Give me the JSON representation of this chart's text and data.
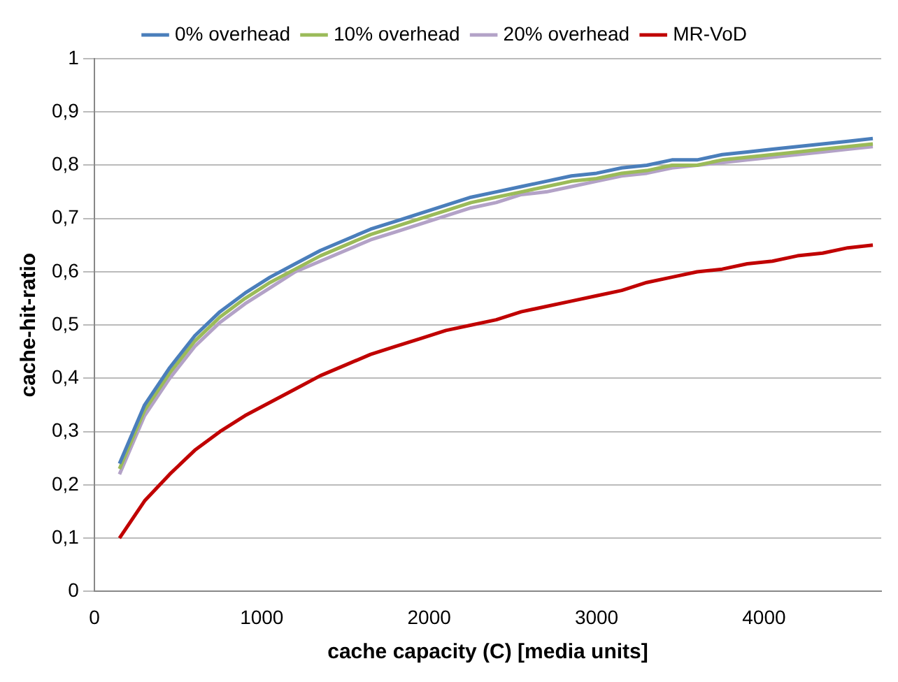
{
  "chart_data": {
    "type": "line",
    "xlabel": "cache capacity (C) [media units]",
    "ylabel": "cache-hit-ratio",
    "x": [
      150,
      300,
      450,
      600,
      750,
      900,
      1050,
      1200,
      1350,
      1500,
      1650,
      1800,
      1950,
      2100,
      2250,
      2400,
      2550,
      2700,
      2850,
      3000,
      3150,
      3300,
      3450,
      3600,
      3750,
      3900,
      4050,
      4200,
      4350,
      4500,
      4650
    ],
    "series": [
      {
        "name": "0% overhead",
        "color": "#4a7ebb",
        "values": [
          0.24,
          0.35,
          0.42,
          0.48,
          0.525,
          0.56,
          0.59,
          0.615,
          0.64,
          0.66,
          0.68,
          0.695,
          0.71,
          0.725,
          0.74,
          0.75,
          0.76,
          0.77,
          0.78,
          0.785,
          0.795,
          0.8,
          0.81,
          0.81,
          0.82,
          0.825,
          0.83,
          0.835,
          0.84,
          0.845,
          0.85
        ]
      },
      {
        "name": "10% overhead",
        "color": "#9bbb59",
        "values": [
          0.23,
          0.34,
          0.41,
          0.47,
          0.515,
          0.55,
          0.58,
          0.605,
          0.63,
          0.65,
          0.67,
          0.685,
          0.7,
          0.715,
          0.73,
          0.74,
          0.75,
          0.76,
          0.77,
          0.775,
          0.785,
          0.79,
          0.8,
          0.8,
          0.81,
          0.815,
          0.82,
          0.825,
          0.83,
          0.835,
          0.84
        ]
      },
      {
        "name": "20% overhead",
        "color": "#b3a2c7",
        "values": [
          0.22,
          0.33,
          0.4,
          0.46,
          0.505,
          0.54,
          0.57,
          0.6,
          0.62,
          0.64,
          0.66,
          0.675,
          0.69,
          0.705,
          0.72,
          0.73,
          0.745,
          0.75,
          0.76,
          0.77,
          0.78,
          0.785,
          0.795,
          0.8,
          0.805,
          0.81,
          0.815,
          0.82,
          0.825,
          0.83,
          0.835
        ]
      },
      {
        "name": "MR-VoD",
        "color": "#c00000",
        "values": [
          0.1,
          0.17,
          0.22,
          0.265,
          0.3,
          0.33,
          0.355,
          0.38,
          0.405,
          0.425,
          0.445,
          0.46,
          0.475,
          0.49,
          0.5,
          0.51,
          0.525,
          0.535,
          0.545,
          0.555,
          0.565,
          0.58,
          0.59,
          0.6,
          0.605,
          0.615,
          0.62,
          0.63,
          0.635,
          0.645,
          0.65
        ]
      }
    ],
    "xlim": [
      0,
      4700
    ],
    "xticks": [
      0,
      1000,
      2000,
      3000,
      4000
    ],
    "ylim": [
      0,
      1
    ],
    "yticks": [
      0,
      {
        "value": 0.1,
        "label": "0,1"
      },
      {
        "value": 0.2,
        "label": "0,2"
      },
      {
        "value": 0.3,
        "label": "0,3"
      },
      {
        "value": 0.4,
        "label": "0,4"
      },
      {
        "value": 0.5,
        "label": "0,5"
      },
      {
        "value": 0.6,
        "label": "0,6"
      },
      {
        "value": 0.7,
        "label": "0,7"
      },
      {
        "value": 0.8,
        "label": "0,8"
      },
      {
        "value": 0.9,
        "label": "0,9"
      },
      1
    ],
    "grid": "y",
    "legend": "top",
    "marker": "none",
    "line_style": "solid"
  }
}
